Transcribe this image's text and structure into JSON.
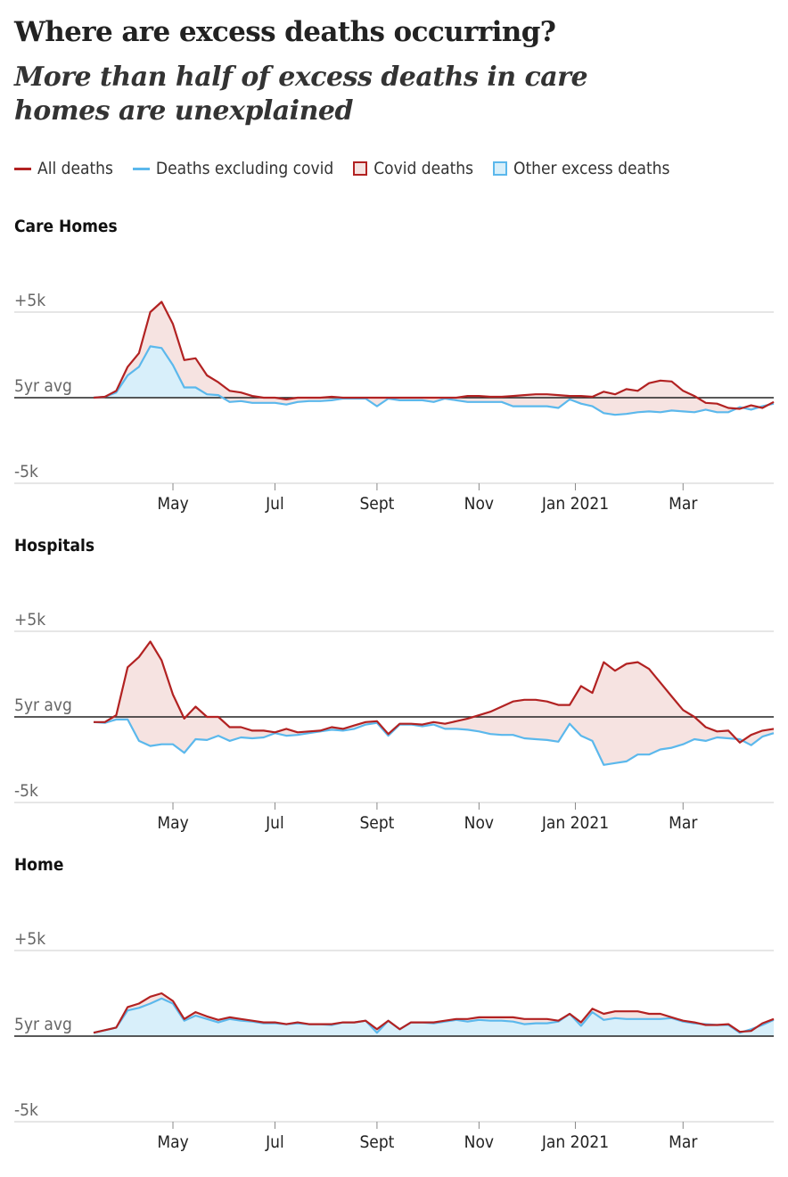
{
  "title": "Where are excess deaths occurring?",
  "subtitle": "More than half of excess deaths in care homes are unexplained",
  "legend": [
    {
      "label": "All deaths",
      "kind": "line",
      "color": "#b22222"
    },
    {
      "label": "Deaths excluding covid",
      "kind": "line",
      "color": "#5bb8ec"
    },
    {
      "label": "Covid deaths",
      "kind": "box",
      "color": "#b22222",
      "fill": "#f6e3e1"
    },
    {
      "label": "Other excess deaths",
      "kind": "box",
      "color": "#5bb8ec",
      "fill": "#d8effa"
    }
  ],
  "colors": {
    "all": "#b22222",
    "excl": "#5bb8ec",
    "covid_fill": "#f6e3e1",
    "other_fill": "#d8effa",
    "grid": "#dddddd",
    "baseline": "#222222"
  },
  "chart_data": [
    {
      "type": "area",
      "title": "Care Homes",
      "ylim": [
        -5000,
        5000
      ],
      "y_tick_labels": [
        "+5k",
        "5yr avg",
        "-5k"
      ],
      "x_tick_labels": [
        "May",
        "Jul",
        "Sept",
        "Nov",
        "Jan 2021",
        "Mar"
      ],
      "x_tick_weeks": [
        7,
        16,
        25,
        34,
        42.5,
        52
      ],
      "series": [
        {
          "name": "All deaths",
          "values": [
            0,
            50,
            400,
            1800,
            2600,
            5000,
            5600,
            4300,
            2200,
            2300,
            1300,
            900,
            400,
            300,
            100,
            0,
            0,
            -100,
            0,
            0,
            0,
            50,
            0,
            0,
            0,
            0,
            0,
            0,
            0,
            0,
            0,
            0,
            0,
            100,
            100,
            50,
            50,
            100,
            150,
            200,
            200,
            150,
            100,
            100,
            50,
            350,
            200,
            500,
            400,
            850,
            1000,
            950,
            400,
            100,
            -300,
            -350,
            -600,
            -650,
            -450,
            -600,
            -250
          ]
        },
        {
          "name": "Deaths excluding covid",
          "values": [
            0,
            50,
            300,
            1300,
            1800,
            3000,
            2900,
            1900,
            600,
            600,
            200,
            150,
            -250,
            -200,
            -300,
            -300,
            -300,
            -400,
            -250,
            -200,
            -200,
            -150,
            -50,
            -50,
            -50,
            -500,
            -50,
            -150,
            -150,
            -150,
            -250,
            -50,
            -150,
            -250,
            -250,
            -250,
            -250,
            -500,
            -500,
            -500,
            -500,
            -600,
            -100,
            -350,
            -500,
            -900,
            -1000,
            -950,
            -850,
            -800,
            -850,
            -750,
            -800,
            -850,
            -700,
            -850,
            -850,
            -550,
            -700,
            -500,
            -350
          ]
        }
      ]
    },
    {
      "type": "area",
      "title": "Hospitals",
      "ylim": [
        -5000,
        5000
      ],
      "y_tick_labels": [
        "+5k",
        "5yr avg",
        "-5k"
      ],
      "x_tick_labels": [
        "May",
        "Jul",
        "Sept",
        "Nov",
        "Jan 2021",
        "Mar"
      ],
      "x_tick_weeks": [
        7,
        16,
        25,
        34,
        42.5,
        52
      ],
      "series": [
        {
          "name": "All deaths",
          "values": [
            -300,
            -300,
            100,
            2900,
            3500,
            4400,
            3300,
            1300,
            -100,
            600,
            0,
            0,
            -600,
            -600,
            -800,
            -800,
            -900,
            -700,
            -900,
            -850,
            -800,
            -600,
            -700,
            -500,
            -300,
            -250,
            -1000,
            -400,
            -400,
            -450,
            -300,
            -400,
            -250,
            -100,
            100,
            300,
            600,
            900,
            1000,
            1000,
            900,
            700,
            700,
            1800,
            1400,
            3200,
            2700,
            3100,
            3200,
            2800,
            2000,
            1200,
            400,
            0,
            -600,
            -850,
            -800,
            -1500,
            -1050,
            -800,
            -700
          ]
        },
        {
          "name": "Deaths excluding covid",
          "values": [
            -300,
            -350,
            -150,
            -150,
            -1400,
            -1700,
            -1600,
            -1600,
            -2100,
            -1300,
            -1350,
            -1100,
            -1400,
            -1200,
            -1250,
            -1200,
            -950,
            -1100,
            -1050,
            -950,
            -850,
            -750,
            -800,
            -700,
            -450,
            -350,
            -1100,
            -450,
            -450,
            -550,
            -450,
            -700,
            -700,
            -750,
            -850,
            -1000,
            -1050,
            -1050,
            -1250,
            -1300,
            -1350,
            -1450,
            -400,
            -1100,
            -1400,
            -2800,
            -2700,
            -2600,
            -2200,
            -2200,
            -1900,
            -1800,
            -1600,
            -1300,
            -1400,
            -1200,
            -1250,
            -1300,
            -1650,
            -1150,
            -950
          ]
        }
      ]
    },
    {
      "type": "area",
      "title": "Home",
      "ylim": [
        -5000,
        5000
      ],
      "y_tick_labels": [
        "+5k",
        "5yr avg",
        "-5k"
      ],
      "x_tick_labels": [
        "May",
        "Jul",
        "Sept",
        "Nov",
        "Jan 2021",
        "Mar"
      ],
      "x_tick_weeks": [
        7,
        16,
        25,
        34,
        42.5,
        52
      ],
      "series": [
        {
          "name": "All deaths",
          "values": [
            200,
            350,
            500,
            1700,
            1900,
            2300,
            2500,
            2050,
            1000,
            1400,
            1150,
            950,
            1100,
            1000,
            900,
            800,
            800,
            700,
            800,
            700,
            700,
            700,
            800,
            800,
            900,
            400,
            900,
            400,
            800,
            800,
            800,
            900,
            1000,
            1000,
            1100,
            1100,
            1100,
            1100,
            1000,
            1000,
            1000,
            900,
            1300,
            800,
            1600,
            1300,
            1450,
            1450,
            1450,
            1300,
            1300,
            1100,
            900,
            800,
            650,
            650,
            700,
            250,
            300,
            750,
            1000
          ]
        },
        {
          "name": "Deaths excluding covid",
          "values": [
            200,
            350,
            500,
            1500,
            1650,
            1900,
            2200,
            1900,
            900,
            1200,
            1000,
            800,
            1000,
            900,
            850,
            750,
            750,
            700,
            750,
            700,
            700,
            650,
            800,
            800,
            900,
            200,
            900,
            400,
            800,
            800,
            750,
            850,
            950,
            850,
            950,
            900,
            900,
            850,
            700,
            750,
            750,
            850,
            1300,
            600,
            1400,
            950,
            1050,
            1000,
            1000,
            1000,
            1000,
            1050,
            850,
            750,
            700,
            650,
            650,
            200,
            400,
            650,
            950
          ]
        }
      ]
    }
  ]
}
